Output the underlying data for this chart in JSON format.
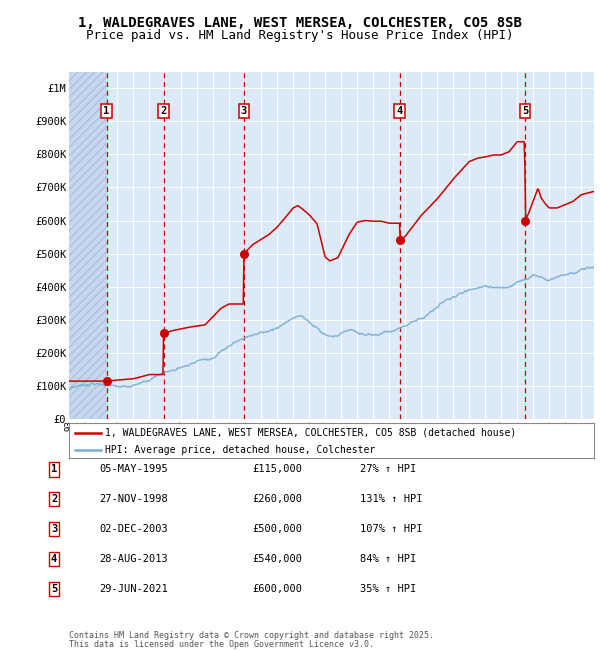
{
  "title_line1": "1, WALDEGRAVES LANE, WEST MERSEA, COLCHESTER, CO5 8SB",
  "title_line2": "Price paid vs. HM Land Registry's House Price Index (HPI)",
  "title_fontsize": 10,
  "subtitle_fontsize": 9,
  "yticks": [
    0,
    100000,
    200000,
    300000,
    400000,
    500000,
    600000,
    700000,
    800000,
    900000,
    1000000
  ],
  "ytick_labels": [
    "£0",
    "£100K",
    "£200K",
    "£300K",
    "£400K",
    "£500K",
    "£600K",
    "£700K",
    "£800K",
    "£900K",
    "£1M"
  ],
  "ylim": [
    0,
    1050000
  ],
  "xlim_start": 1993.0,
  "xlim_end": 2025.8,
  "x_tick_years": [
    1993,
    1994,
    1995,
    1996,
    1997,
    1998,
    1999,
    2000,
    2001,
    2002,
    2003,
    2004,
    2005,
    2006,
    2007,
    2008,
    2009,
    2010,
    2011,
    2012,
    2013,
    2014,
    2015,
    2016,
    2017,
    2018,
    2019,
    2020,
    2021,
    2022,
    2023,
    2024,
    2025
  ],
  "fig_bg_color": "#ffffff",
  "plot_bg_color": "#dce9f7",
  "grid_color": "#ffffff",
  "sale_color": "#cc0000",
  "hpi_color": "#7bafd4",
  "dashed_line_color": "#cc0000",
  "transactions": [
    {
      "num": 1,
      "date": "05-MAY-1995",
      "price": 115000,
      "pct": "27%",
      "x": 1995.35
    },
    {
      "num": 2,
      "date": "27-NOV-1998",
      "price": 260000,
      "pct": "131%",
      "x": 1998.91
    },
    {
      "num": 3,
      "date": "02-DEC-2003",
      "price": 500000,
      "pct": "107%",
      "x": 2003.92
    },
    {
      "num": 4,
      "date": "28-AUG-2013",
      "price": 540000,
      "pct": "84%",
      "x": 2013.66
    },
    {
      "num": 5,
      "date": "29-JUN-2021",
      "price": 600000,
      "pct": "35%",
      "x": 2021.49
    }
  ],
  "footer_line1": "Contains HM Land Registry data © Crown copyright and database right 2025.",
  "footer_line2": "This data is licensed under the Open Government Licence v3.0.",
  "legend_entry1": "1, WALDEGRAVES LANE, WEST MERSEA, COLCHESTER, CO5 8SB (detached house)",
  "legend_entry2": "HPI: Average price, detached house, Colchester",
  "hpi_anchors": [
    [
      1993.0,
      90000
    ],
    [
      1995.0,
      95000
    ],
    [
      1997.0,
      105000
    ],
    [
      1998.0,
      110000
    ],
    [
      2000.0,
      135000
    ],
    [
      2002.0,
      175000
    ],
    [
      2004.0,
      235000
    ],
    [
      2005.0,
      255000
    ],
    [
      2007.5,
      308000
    ],
    [
      2009.0,
      258000
    ],
    [
      2009.5,
      255000
    ],
    [
      2010.5,
      280000
    ],
    [
      2012.0,
      272000
    ],
    [
      2013.0,
      278000
    ],
    [
      2014.0,
      298000
    ],
    [
      2015.5,
      340000
    ],
    [
      2016.5,
      375000
    ],
    [
      2018.0,
      415000
    ],
    [
      2019.0,
      430000
    ],
    [
      2020.0,
      428000
    ],
    [
      2020.5,
      435000
    ],
    [
      2021.0,
      455000
    ],
    [
      2022.0,
      485000
    ],
    [
      2022.5,
      480000
    ],
    [
      2023.0,
      468000
    ],
    [
      2024.0,
      488000
    ],
    [
      2025.0,
      510000
    ],
    [
      2025.8,
      518000
    ]
  ],
  "sale_anchors": [
    [
      1993.0,
      115000
    ],
    [
      1995.35,
      115000
    ],
    [
      1995.5,
      116000
    ],
    [
      1996.0,
      118000
    ],
    [
      1997.0,
      122000
    ],
    [
      1997.5,
      128000
    ],
    [
      1998.0,
      135000
    ],
    [
      1998.9,
      135000
    ],
    [
      1998.91,
      260000
    ],
    [
      1999.5,
      268000
    ],
    [
      2000.5,
      278000
    ],
    [
      2001.5,
      285000
    ],
    [
      2002.5,
      335000
    ],
    [
      2003.0,
      348000
    ],
    [
      2003.91,
      348000
    ],
    [
      2003.92,
      500000
    ],
    [
      2004.5,
      528000
    ],
    [
      2005.5,
      558000
    ],
    [
      2006.0,
      580000
    ],
    [
      2006.5,
      608000
    ],
    [
      2007.0,
      638000
    ],
    [
      2007.3,
      645000
    ],
    [
      2007.5,
      638000
    ],
    [
      2008.0,
      618000
    ],
    [
      2008.5,
      590000
    ],
    [
      2009.0,
      490000
    ],
    [
      2009.3,
      478000
    ],
    [
      2009.8,
      488000
    ],
    [
      2010.0,
      508000
    ],
    [
      2010.5,
      558000
    ],
    [
      2011.0,
      595000
    ],
    [
      2011.5,
      600000
    ],
    [
      2012.0,
      598000
    ],
    [
      2012.5,
      598000
    ],
    [
      2013.0,
      592000
    ],
    [
      2013.65,
      592000
    ],
    [
      2013.66,
      540000
    ],
    [
      2014.0,
      552000
    ],
    [
      2015.0,
      615000
    ],
    [
      2016.0,
      665000
    ],
    [
      2017.0,
      725000
    ],
    [
      2018.0,
      778000
    ],
    [
      2018.5,
      788000
    ],
    [
      2019.0,
      792000
    ],
    [
      2019.5,
      798000
    ],
    [
      2020.0,
      798000
    ],
    [
      2020.5,
      808000
    ],
    [
      2021.0,
      838000
    ],
    [
      2021.48,
      838000
    ],
    [
      2021.49,
      600000
    ],
    [
      2021.7,
      620000
    ],
    [
      2022.0,
      658000
    ],
    [
      2022.3,
      698000
    ],
    [
      2022.5,
      668000
    ],
    [
      2022.8,
      648000
    ],
    [
      2023.0,
      638000
    ],
    [
      2023.5,
      638000
    ],
    [
      2024.0,
      648000
    ],
    [
      2024.5,
      658000
    ],
    [
      2025.0,
      678000
    ],
    [
      2025.8,
      688000
    ]
  ]
}
